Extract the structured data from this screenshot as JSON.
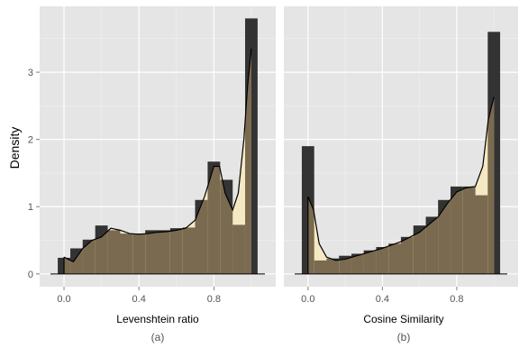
{
  "figure": {
    "ylabel": "Density",
    "colors": {
      "panel_bg": "#e5e5e5",
      "grid_major": "#ffffff",
      "grid_minor": "#f2f2f2",
      "hist_fill": "#333333",
      "density_fill": "#f5e9c4",
      "overlap_fill": "#7a6a4f",
      "density_line": "#000000"
    }
  },
  "chart_data": [
    {
      "type": "bar",
      "panel": "a",
      "xlabel": "Levenshtein ratio",
      "caption": "(a)",
      "ylabel": "Density",
      "xlim": [
        -0.13,
        1.13
      ],
      "ylim": [
        -0.19,
        3.98
      ],
      "xticks": [
        0.0,
        0.4,
        0.8
      ],
      "xtick_labels": [
        "0.0",
        "0.4",
        "0.8"
      ],
      "yticks": [
        0,
        1,
        2,
        3
      ],
      "ytick_labels": [
        "0",
        "1",
        "2",
        "3"
      ],
      "histogram": {
        "bin_width": 0.0667,
        "x": [
          0.0,
          0.067,
          0.133,
          0.2,
          0.267,
          0.333,
          0.4,
          0.467,
          0.533,
          0.6,
          0.667,
          0.733,
          0.8,
          0.867,
          0.933,
          1.0
        ],
        "values": [
          0.24,
          0.38,
          0.51,
          0.72,
          0.65,
          0.6,
          0.6,
          0.65,
          0.65,
          0.68,
          0.69,
          1.1,
          1.67,
          1.4,
          0.73,
          3.8
        ]
      },
      "density": {
        "x": [
          0.0,
          0.05,
          0.1,
          0.15,
          0.2,
          0.25,
          0.3,
          0.35,
          0.4,
          0.45,
          0.5,
          0.55,
          0.6,
          0.65,
          0.7,
          0.75,
          0.8,
          0.83,
          0.86,
          0.9,
          0.93,
          0.96,
          0.98,
          1.0
        ],
        "values": [
          0.25,
          0.18,
          0.38,
          0.5,
          0.55,
          0.68,
          0.65,
          0.6,
          0.59,
          0.6,
          0.62,
          0.63,
          0.65,
          0.68,
          0.8,
          1.15,
          1.6,
          1.6,
          1.2,
          0.95,
          1.2,
          2.0,
          2.8,
          3.35
        ]
      }
    },
    {
      "type": "bar",
      "panel": "b",
      "xlabel": "Cosine Similarity",
      "caption": "(b)",
      "xlim": [
        -0.13,
        1.13
      ],
      "ylim": [
        -0.19,
        3.98
      ],
      "xticks": [
        0.0,
        0.4,
        0.8
      ],
      "xtick_labels": [
        "0.0",
        "0.4",
        "0.8"
      ],
      "histogram": {
        "bin_width": 0.0667,
        "x": [
          0.0,
          0.067,
          0.133,
          0.2,
          0.267,
          0.333,
          0.4,
          0.467,
          0.533,
          0.6,
          0.667,
          0.733,
          0.8,
          0.867,
          0.933,
          1.0
        ],
        "values": [
          1.9,
          0.2,
          0.23,
          0.27,
          0.3,
          0.35,
          0.4,
          0.45,
          0.55,
          0.72,
          0.85,
          1.1,
          1.3,
          1.3,
          1.17,
          3.6
        ]
      },
      "density": {
        "x": [
          0.0,
          0.03,
          0.06,
          0.1,
          0.15,
          0.2,
          0.3,
          0.4,
          0.5,
          0.6,
          0.7,
          0.75,
          0.8,
          0.85,
          0.9,
          0.94,
          0.97,
          1.0
        ],
        "values": [
          1.15,
          0.95,
          0.45,
          0.25,
          0.2,
          0.22,
          0.3,
          0.38,
          0.48,
          0.62,
          0.85,
          1.05,
          1.22,
          1.28,
          1.3,
          1.6,
          2.3,
          2.63
        ]
      }
    }
  ]
}
